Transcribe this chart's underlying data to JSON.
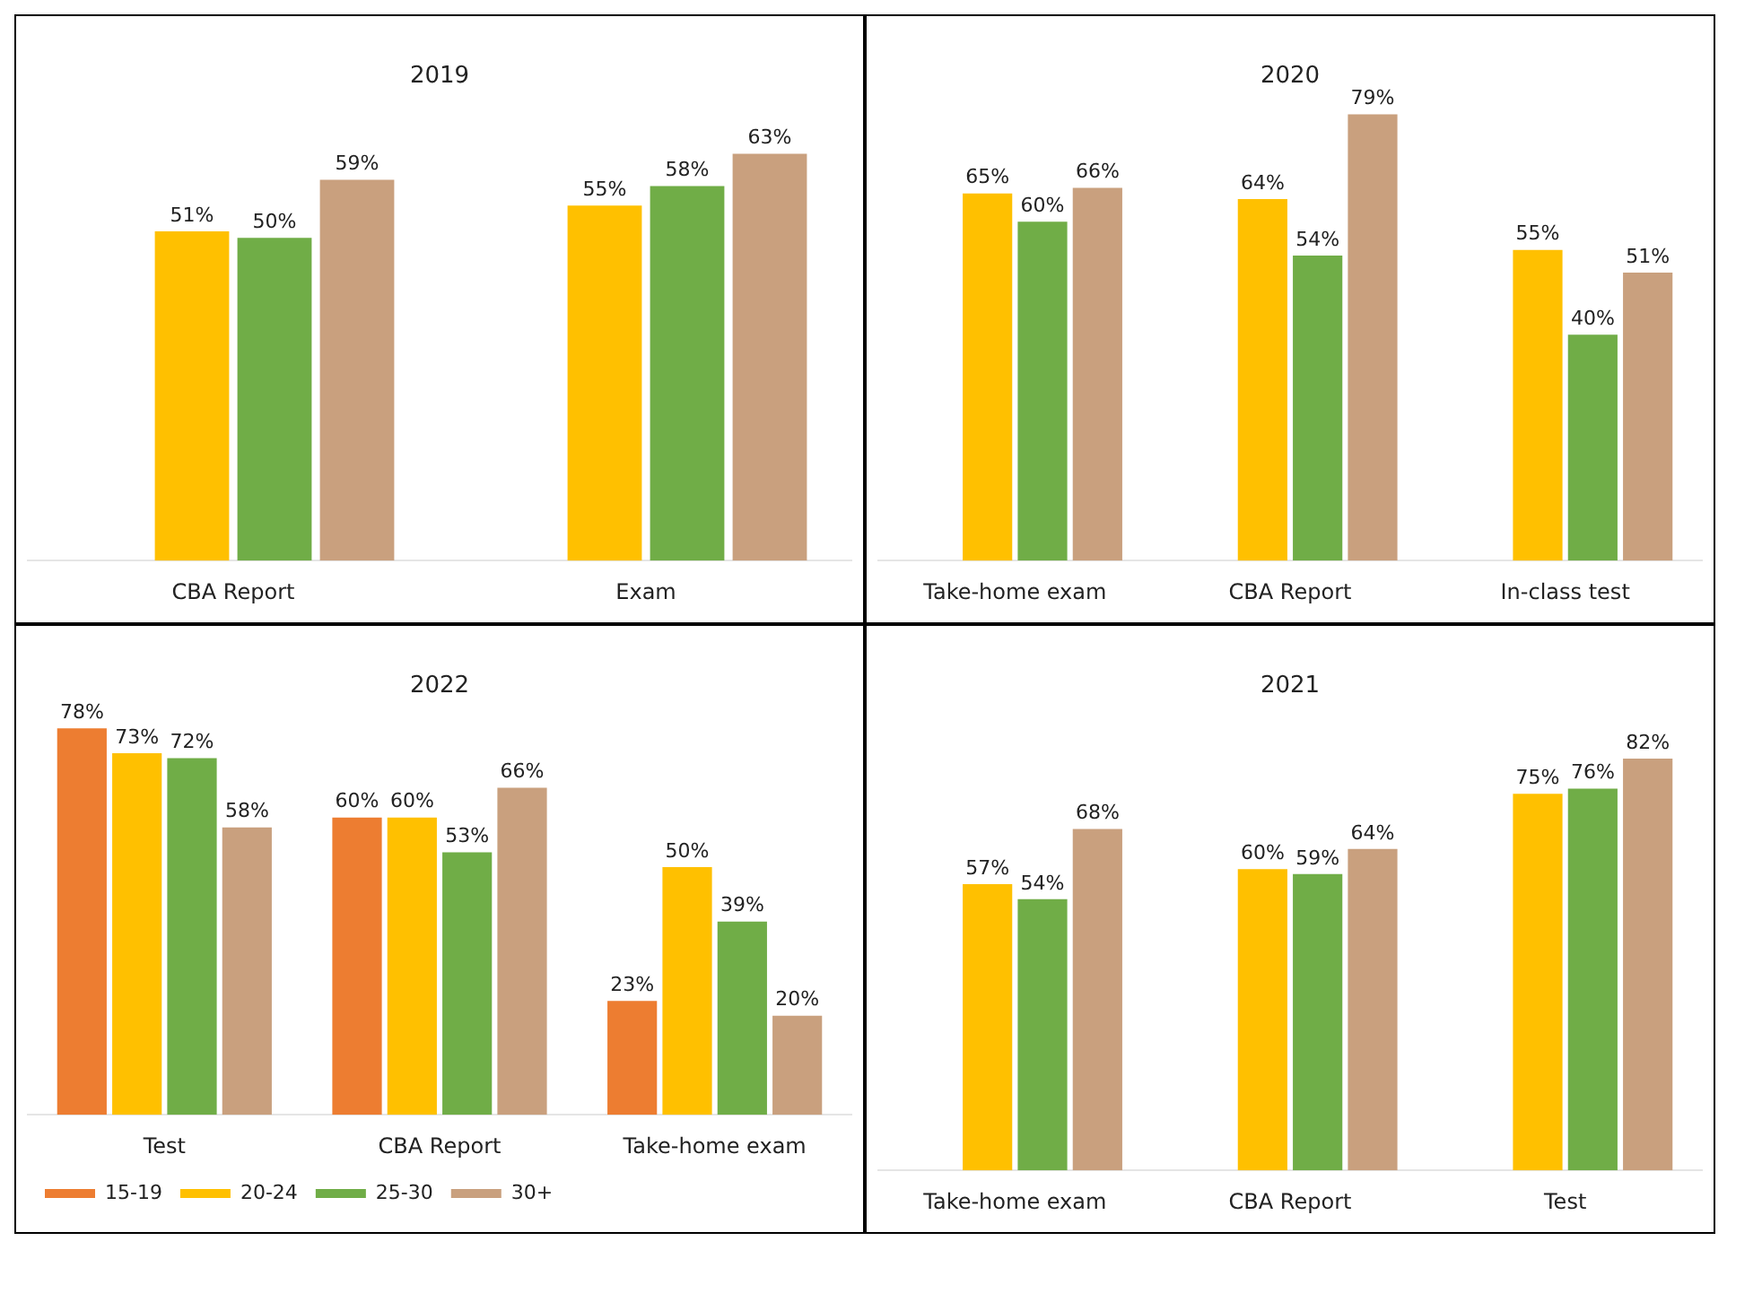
{
  "chart_data": [
    {
      "type": "bar",
      "title": "2019",
      "categories": [
        "CBA Report",
        "Exam"
      ],
      "tick_labels": "x",
      "series": [
        {
          "color": "#ed7d31",
          "values": [
            null,
            null
          ],
          "value_labels": [
            null,
            null
          ]
        },
        {
          "color": "#ffc000",
          "values": [
            51,
            55
          ],
          "value_labels": [
            "51%",
            "55%"
          ]
        },
        {
          "color": "#70ad47",
          "values": [
            50,
            58
          ],
          "value_labels": [
            "50%",
            "58%"
          ]
        },
        {
          "color": "#c9a07e",
          "values": [
            59,
            63
          ],
          "value_labels": [
            "59%",
            "63%"
          ]
        }
      ]
    },
    {
      "type": "bar",
      "title": "2020",
      "categories": [
        "Take-home exam",
        "CBA Report",
        "In-class test"
      ],
      "tick_labels": "x",
      "series": [
        {
          "color": "#ed7d31",
          "values": [
            null,
            null,
            null
          ],
          "value_labels": [
            null,
            null,
            null
          ]
        },
        {
          "color": "#ffc000",
          "values": [
            65,
            64,
            55
          ],
          "value_labels": [
            "65%",
            "64%",
            "55%"
          ]
        },
        {
          "color": "#70ad47",
          "values": [
            60,
            54,
            40
          ],
          "value_labels": [
            "60%",
            "54%",
            "40%"
          ]
        },
        {
          "color": "#c9a07e",
          "values": [
            66,
            79,
            51
          ],
          "value_labels": [
            "66%",
            "79%",
            "51%"
          ]
        }
      ]
    },
    {
      "type": "bar",
      "title": "2022",
      "categories": [
        "Test",
        "CBA Report",
        "Take-home exam"
      ],
      "tick_labels": "x",
      "legend": "bottom left",
      "series": [
        {
          "name": "15-19",
          "color": "#ed7d31",
          "values": [
            78,
            60,
            23
          ],
          "value_labels": [
            "78%",
            "60%",
            "23%"
          ]
        },
        {
          "name": "20-24",
          "color": "#ffc000",
          "values": [
            73,
            60,
            50
          ],
          "value_labels": [
            "73%",
            "60%",
            "50%"
          ]
        },
        {
          "name": "25-30",
          "color": "#70ad47",
          "values": [
            72,
            53,
            39
          ],
          "value_labels": [
            "72%",
            "53%",
            "39%"
          ]
        },
        {
          "name": "30+",
          "color": "#c9a07e",
          "values": [
            58,
            66,
            20
          ],
          "value_labels": [
            "58%",
            "66%",
            "20%"
          ]
        }
      ]
    },
    {
      "type": "bar",
      "title": "2021",
      "categories": [
        "Take-home exam",
        "CBA Report",
        "Test"
      ],
      "tick_labels": "x",
      "series": [
        {
          "color": "#ed7d31",
          "values": [
            null,
            null,
            null
          ],
          "value_labels": [
            null,
            null,
            null
          ]
        },
        {
          "color": "#ffc000",
          "values": [
            57,
            60,
            75
          ],
          "value_labels": [
            "57%",
            "60%",
            "75%"
          ]
        },
        {
          "color": "#70ad47",
          "values": [
            54,
            59,
            76
          ],
          "value_labels": [
            "54%",
            "59%",
            "76%"
          ]
        },
        {
          "color": "#c9a07e",
          "values": [
            68,
            64,
            82
          ],
          "value_labels": [
            "68%",
            "64%",
            "82%"
          ]
        }
      ]
    }
  ]
}
